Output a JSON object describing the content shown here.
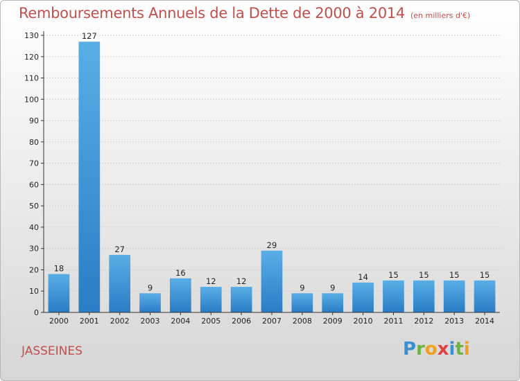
{
  "title": "Remboursements Annuels de la Dette de 2000 à 2014",
  "unit": "(en milliers d'€)",
  "commune": "JASSEINES",
  "brand": [
    "P",
    "r",
    "o",
    "x",
    "i",
    "t",
    "i"
  ],
  "colors": {
    "bar_top": "#5aaee6",
    "bar_bottom": "#2a7cc4",
    "title": "#c0504d"
  },
  "chart_data": {
    "type": "bar",
    "title": "Remboursements Annuels de la Dette de 2000 à 2014",
    "xlabel": "",
    "ylabel": "",
    "ylim": [
      0,
      130
    ],
    "yticks": [
      0,
      10,
      20,
      30,
      40,
      50,
      60,
      70,
      80,
      90,
      100,
      110,
      120,
      130
    ],
    "grid": true,
    "categories": [
      "2000",
      "2001",
      "2002",
      "2003",
      "2004",
      "2005",
      "2006",
      "2007",
      "2008",
      "2009",
      "2010",
      "2011",
      "2012",
      "2013",
      "2014"
    ],
    "values": [
      18,
      127,
      27,
      9,
      16,
      12,
      12,
      29,
      9,
      9,
      14,
      15,
      15,
      15,
      15
    ]
  }
}
